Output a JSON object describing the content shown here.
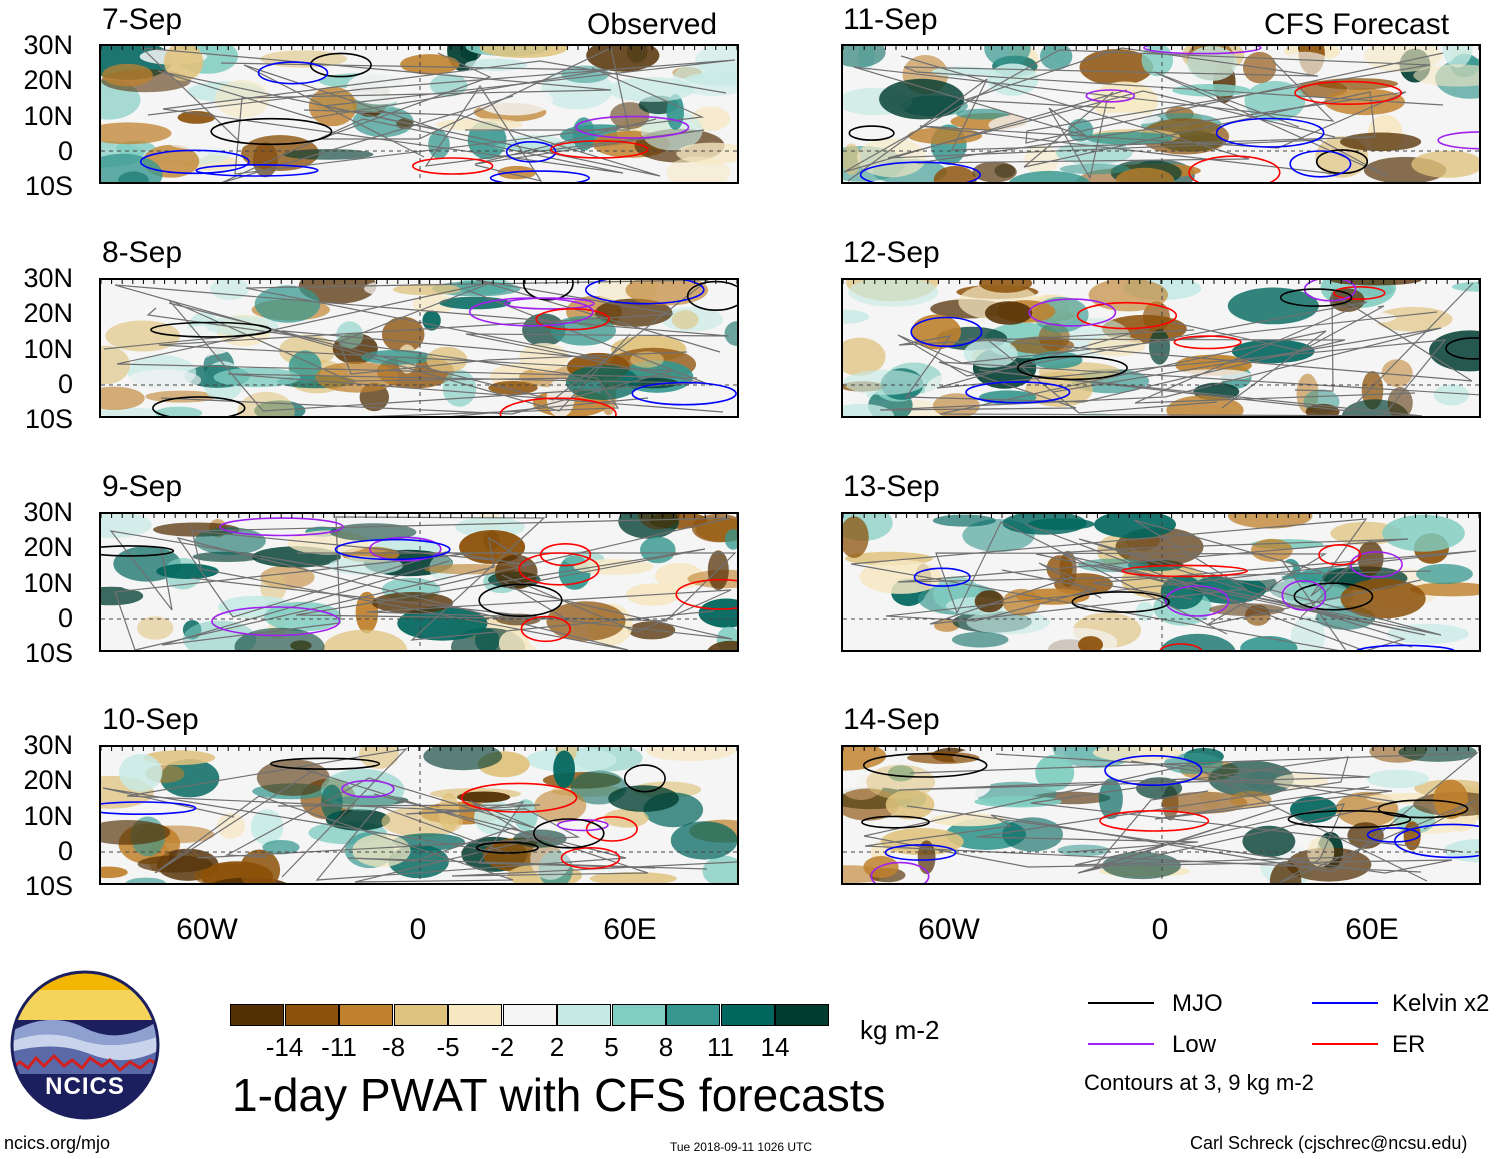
{
  "header": {
    "observed_label": "Observed",
    "forecast_label": "CFS Forecast"
  },
  "panels_observed": [
    {
      "date": "7-Sep"
    },
    {
      "date": "8-Sep"
    },
    {
      "date": "9-Sep"
    },
    {
      "date": "10-Sep"
    }
  ],
  "panels_forecast": [
    {
      "date": "11-Sep"
    },
    {
      "date": "12-Sep"
    },
    {
      "date": "13-Sep"
    },
    {
      "date": "14-Sep"
    }
  ],
  "latitude_labels": [
    "30N",
    "20N",
    "10N",
    "0",
    "10S"
  ],
  "longitude_labels": [
    "60W",
    "0",
    "60E"
  ],
  "colorbar": {
    "colors": [
      "#543005",
      "#8c510a",
      "#bf812d",
      "#dfc27d",
      "#f6e8c3",
      "#f5f5f5",
      "#c7eae5",
      "#80cdc1",
      "#35978f",
      "#01665e",
      "#003c30"
    ],
    "ticks": [
      "-14",
      "-11",
      "-8",
      "-5",
      "-2",
      "2",
      "5",
      "8",
      "11",
      "14"
    ],
    "units": "kg m-2"
  },
  "title": "1-day PWAT with CFS forecasts",
  "legend": {
    "items": [
      {
        "label": "MJO",
        "color": "#000000"
      },
      {
        "label": "Kelvin x2",
        "color": "#0000ff"
      },
      {
        "label": "Low",
        "color": "#a020f0"
      },
      {
        "label": "ER",
        "color": "#ff0000"
      }
    ],
    "note": "Contours at 3, 9 kg m-2"
  },
  "logo": {
    "text": "NCICS"
  },
  "footer": {
    "left": "ncics.org/mjo",
    "center": "Tue 2018-09-11 1026 UTC",
    "right": "Carl Schreck (cjschrec@ncsu.edu)"
  }
}
